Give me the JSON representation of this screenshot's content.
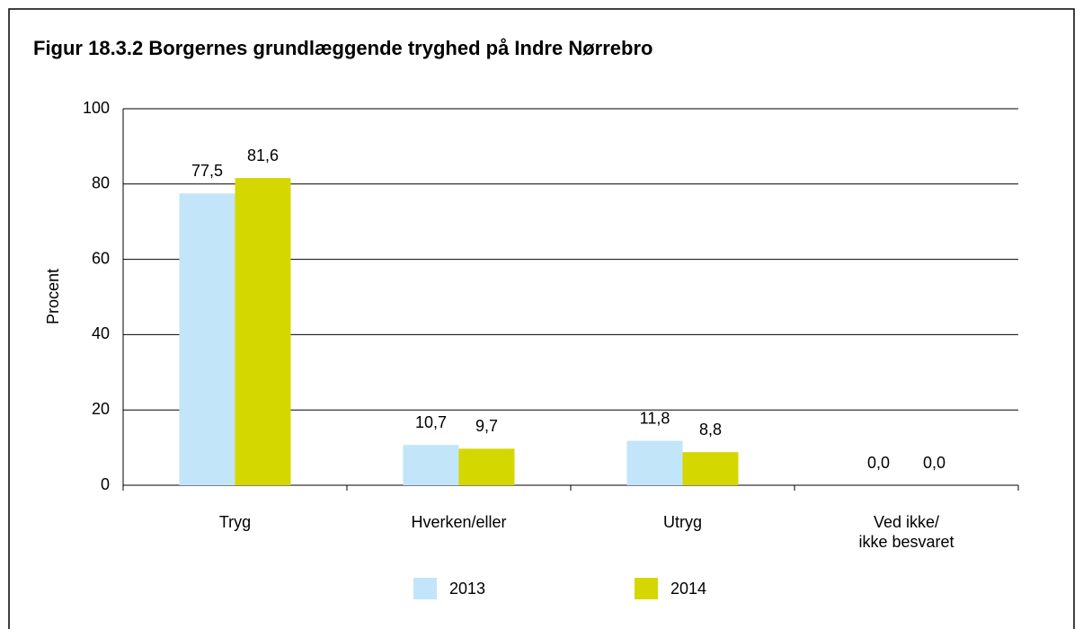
{
  "chart_data": {
    "type": "bar",
    "title": "Figur 18.3.2  Borgernes grundlæggende tryghed på Indre Nørrebro",
    "y_label": "Procent",
    "categories": [
      "Tryg",
      "Hverken/eller",
      "Utryg",
      [
        "Ved ikke/",
        "ikke besvaret"
      ]
    ],
    "series": [
      {
        "name": "2013",
        "color": "#c2e5f9",
        "values": [
          77.5,
          10.7,
          11.8,
          0.0
        ],
        "value_labels": [
          "77,5",
          "10,7",
          "11,8",
          "0,0"
        ]
      },
      {
        "name": "2014",
        "color": "#d4d700",
        "values": [
          81.6,
          9.7,
          8.8,
          0.0
        ],
        "value_labels": [
          "81,6",
          "9,7",
          "8,8",
          "0,0"
        ]
      }
    ],
    "ylim": [
      0,
      100
    ],
    "yticks": [
      0,
      20,
      40,
      60,
      80,
      100
    ],
    "grid": true,
    "legend": "bottom"
  }
}
